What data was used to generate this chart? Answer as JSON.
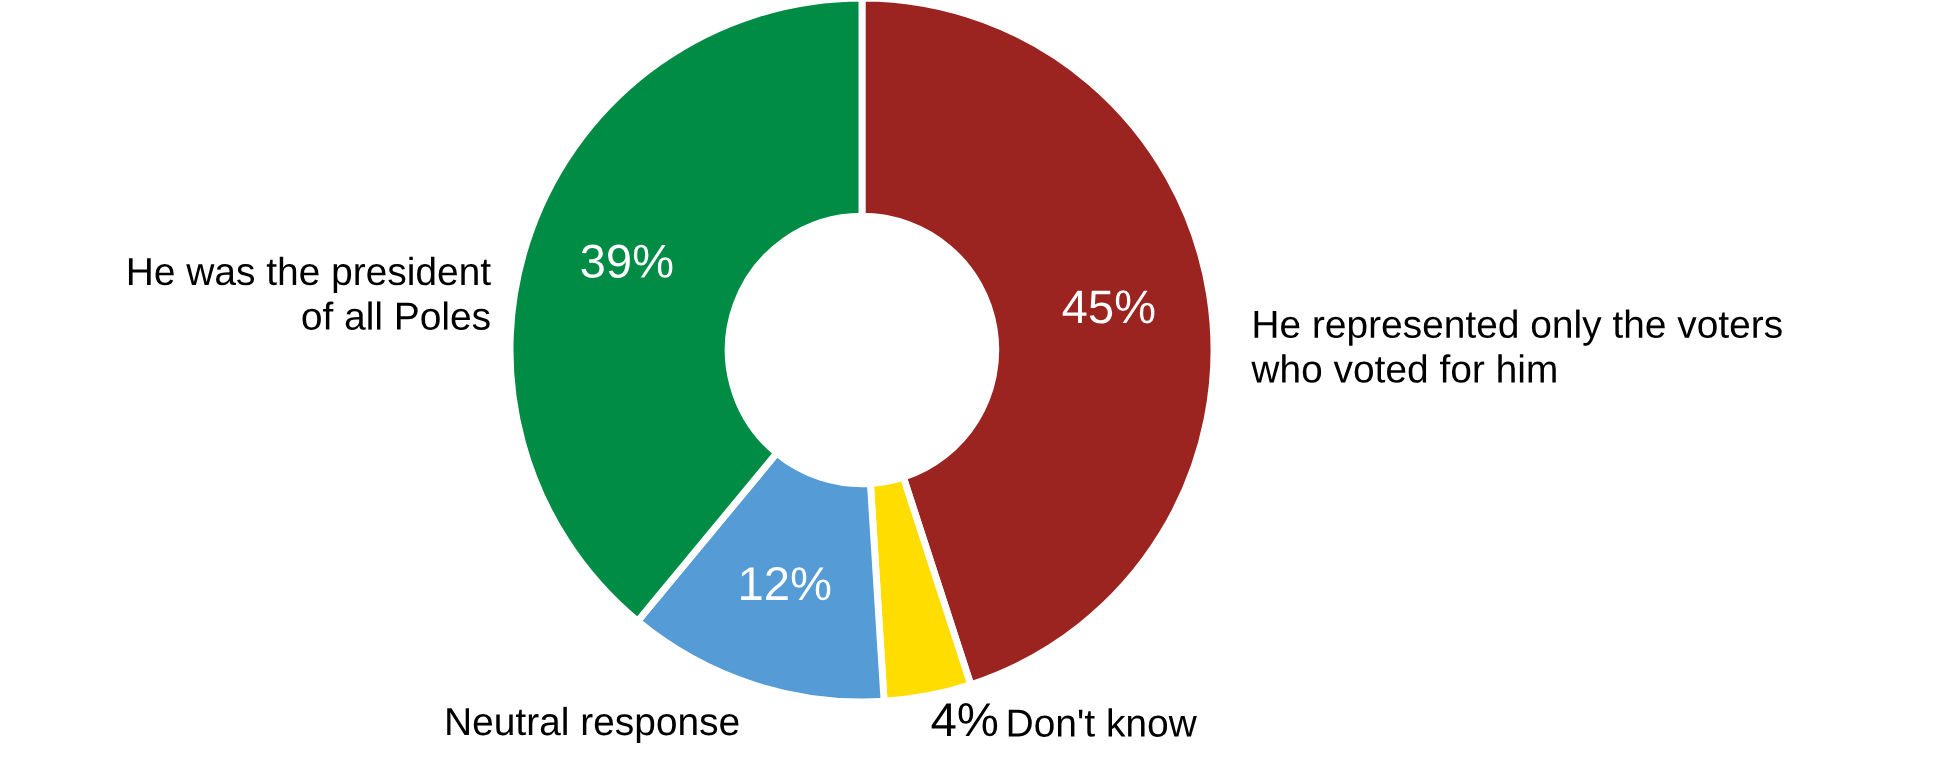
{
  "chart_data": {
    "type": "donut",
    "categories": [
      "He represented only the voters who voted for him",
      "Don't know",
      "Neutral response",
      "He was the president of all Poles"
    ],
    "values": [
      45,
      4,
      12,
      39
    ],
    "colors": [
      "#9b2320",
      "#ffdd00",
      "#559bd5",
      "#008c45"
    ],
    "value_labels": [
      "45%",
      "4%",
      "12%",
      "39%"
    ],
    "legend": false
  }
}
